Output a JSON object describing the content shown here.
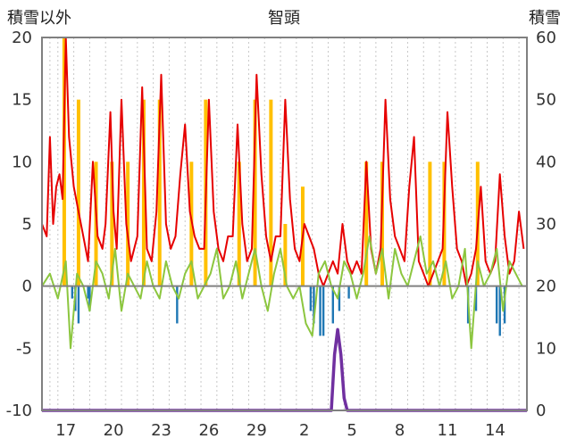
{
  "chart_data": {
    "type": "line",
    "title": "智頭",
    "ylabel_left": "積雪以外",
    "ylabel_right": "積雪",
    "ylim_left": [
      -10,
      20
    ],
    "ylim_right": [
      0,
      60
    ],
    "yticks_left": [
      -10,
      -5,
      0,
      5,
      10,
      15,
      20
    ],
    "yticks_right": [
      0,
      10,
      20,
      30,
      40,
      50,
      60
    ],
    "xtick_labels": [
      "17",
      "20",
      "23",
      "26",
      "29",
      "2",
      "5",
      "8",
      "11",
      "14"
    ],
    "x_range_days": [
      0,
      30.5
    ],
    "xtick_positions": [
      1.5,
      4.5,
      7.5,
      10.5,
      13.5,
      16.5,
      19.5,
      22.5,
      25.5,
      28.5
    ],
    "day_gridlines": [
      0.5,
      1,
      2,
      3,
      4,
      5,
      6,
      7,
      8,
      9,
      10,
      11,
      12,
      13,
      14,
      15,
      16,
      17,
      18,
      19,
      20,
      21,
      22,
      23,
      24,
      25,
      26,
      27,
      28,
      29,
      30
    ],
    "colors": {
      "max_temp": "#e60000",
      "min_temp": "#8cc63f",
      "sunshine": "#ffc000",
      "precip_neg": "#1f77b4",
      "snow": "#7030a0"
    },
    "series": [
      {
        "axis": "left",
        "color": "#e60000",
        "x": [
          0.0,
          0.3,
          0.5,
          0.7,
          0.9,
          1.1,
          1.3,
          1.5,
          1.7,
          2.0,
          2.3,
          2.6,
          2.9,
          3.2,
          3.5,
          3.8,
          4.0,
          4.3,
          4.5,
          4.7,
          5.0,
          5.3,
          5.6,
          6.0,
          6.3,
          6.6,
          6.9,
          7.2,
          7.5,
          7.8,
          8.1,
          8.4,
          8.7,
          9.0,
          9.3,
          9.6,
          9.9,
          10.2,
          10.5,
          10.8,
          11.1,
          11.4,
          11.7,
          12.0,
          12.3,
          12.6,
          12.9,
          13.2,
          13.5,
          13.8,
          14.1,
          14.4,
          14.7,
          15.0,
          15.3,
          15.6,
          15.9,
          16.2,
          16.5,
          16.8,
          17.1,
          17.4,
          17.7,
          18.0,
          18.3,
          18.6,
          18.9,
          19.2,
          19.5,
          19.8,
          20.1,
          20.4,
          20.7,
          21.0,
          21.3,
          21.6,
          21.9,
          22.2,
          22.5,
          22.8,
          23.1,
          23.4,
          23.7,
          24.0,
          24.3,
          24.6,
          24.9,
          25.2,
          25.5,
          25.8,
          26.1,
          26.4,
          26.7,
          27.0,
          27.3,
          27.6,
          27.9,
          28.2,
          28.5,
          28.8,
          29.1,
          29.4,
          29.7,
          30.0,
          30.3
        ],
        "y": [
          5,
          4,
          12,
          5,
          8,
          9,
          7,
          20,
          12,
          8,
          6,
          4,
          2,
          10,
          4,
          3,
          5,
          14,
          6,
          3,
          15,
          5,
          2,
          4,
          16,
          3,
          2,
          6,
          17,
          5,
          3,
          4,
          9,
          13,
          6,
          4,
          3,
          3,
          15,
          6,
          3,
          2,
          4,
          4,
          13,
          5,
          2,
          3,
          17,
          9,
          4,
          2,
          4,
          4,
          15,
          7,
          3,
          2,
          5,
          4,
          3,
          1,
          0,
          1,
          2,
          1,
          5,
          2,
          1,
          2,
          1,
          10,
          3,
          1,
          3,
          15,
          7,
          4,
          3,
          2,
          8,
          12,
          2,
          1,
          0,
          1,
          2,
          3,
          14,
          8,
          3,
          2,
          0,
          1,
          3,
          8,
          2,
          1,
          2,
          9,
          4,
          1,
          2,
          6,
          3
        ]
      },
      {
        "axis": "left",
        "color": "#8cc63f",
        "x": [
          0.0,
          0.5,
          1.0,
          1.5,
          1.8,
          2.2,
          2.6,
          3.0,
          3.4,
          3.8,
          4.2,
          4.6,
          5.0,
          5.4,
          5.8,
          6.2,
          6.6,
          7.0,
          7.4,
          7.8,
          8.2,
          8.6,
          9.0,
          9.4,
          9.8,
          10.2,
          10.6,
          11.0,
          11.4,
          11.8,
          12.2,
          12.6,
          13.0,
          13.4,
          13.8,
          14.2,
          14.6,
          15.0,
          15.4,
          15.8,
          16.2,
          16.6,
          17.0,
          17.4,
          17.8,
          18.2,
          18.6,
          19.0,
          19.4,
          19.8,
          20.2,
          20.6,
          21.0,
          21.4,
          21.8,
          22.2,
          22.6,
          23.0,
          23.4,
          23.8,
          24.2,
          24.6,
          25.0,
          25.4,
          25.8,
          26.2,
          26.6,
          27.0,
          27.4,
          27.8,
          28.2,
          28.6,
          29.0,
          29.4,
          29.8,
          30.2
        ],
        "y": [
          0,
          1,
          -1,
          2,
          -5,
          1,
          0,
          -2,
          2,
          1,
          -1,
          3,
          -2,
          1,
          0,
          -1,
          2,
          0,
          -1,
          2,
          0,
          -1,
          1,
          2,
          -1,
          0,
          1,
          3,
          -1,
          0,
          2,
          -1,
          1,
          3,
          0,
          -2,
          1,
          3,
          0,
          -1,
          0,
          -3,
          -4,
          1,
          2,
          0,
          -1,
          2,
          1,
          -1,
          1,
          4,
          1,
          3,
          -1,
          3,
          1,
          0,
          2,
          4,
          1,
          2,
          0,
          2,
          -1,
          0,
          3,
          -5,
          2,
          0,
          1,
          3,
          -2,
          2,
          1,
          0
        ]
      },
      {
        "axis": "right",
        "color": "#7030a0",
        "x": [
          0.0,
          18.0,
          18.2,
          18.4,
          18.6,
          18.8,
          19.0,
          19.2,
          30.5
        ],
        "y": [
          0,
          0,
          0,
          9,
          13,
          9,
          2,
          0,
          0
        ]
      }
    ],
    "sunshine_bars": {
      "color": "#ffc000",
      "axis": "left",
      "x": [
        1.4,
        2.3,
        3.4,
        4.4,
        5.4,
        6.4,
        7.4,
        9.4,
        10.3,
        12.4,
        13.4,
        14.4,
        15.3,
        16.4,
        20.4,
        21.4,
        24.4,
        25.3,
        27.4
      ],
      "values": [
        20,
        15,
        10,
        10,
        10,
        15,
        15,
        10,
        15,
        10,
        15,
        15,
        5,
        8,
        10,
        10,
        10,
        10,
        10
      ]
    },
    "negative_bars": {
      "color": "#1f77b4",
      "axis": "left",
      "x": [
        1.9,
        2.1,
        2.3,
        2.9,
        3.0,
        8.5,
        16.9,
        17.1,
        17.5,
        17.7,
        18.3,
        18.7,
        19.3,
        26.8,
        27.3,
        28.6,
        28.8,
        29.1
      ],
      "values": [
        -1,
        -2,
        -3,
        -1,
        -2,
        -3,
        -2,
        -3,
        -4,
        -4,
        -3,
        -2,
        -1,
        -3,
        -2,
        -3,
        -4,
        -3
      ]
    }
  }
}
